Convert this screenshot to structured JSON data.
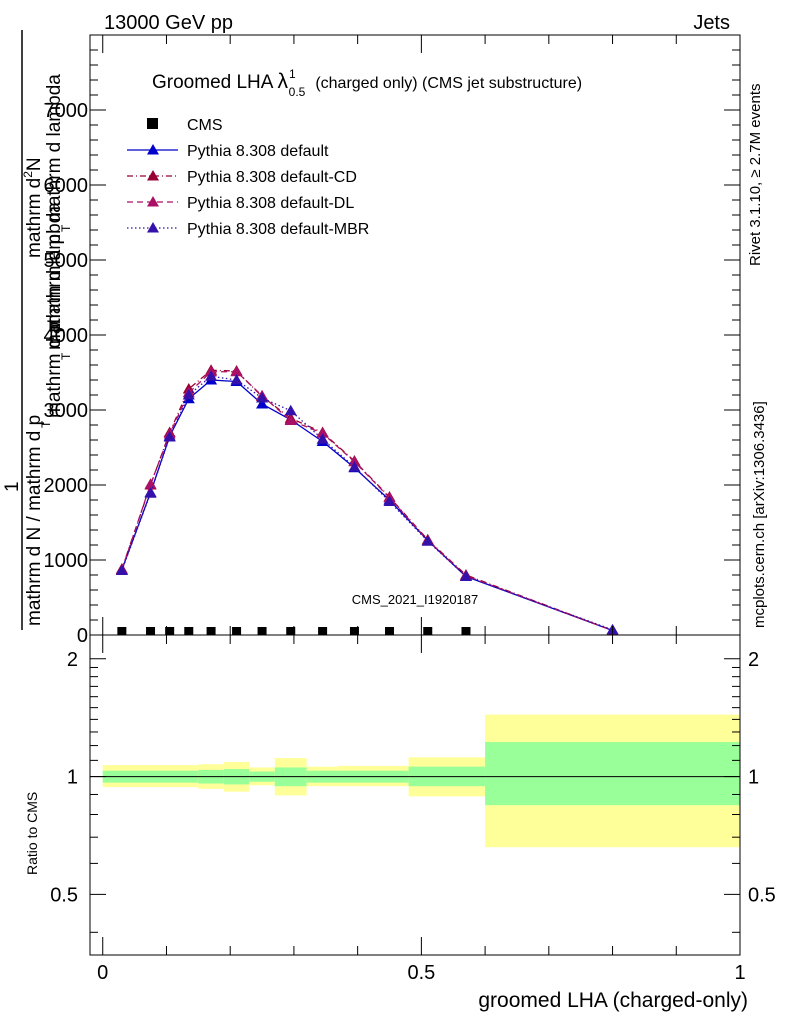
{
  "header": {
    "left": "13000 GeV pp",
    "right": "Jets"
  },
  "side_labels": {
    "rivet": "Rivet 3.1.10, ≥ 2.7M events",
    "mcplots": "mcplots.cern.ch [arXiv:1306.3436]"
  },
  "main_plot": {
    "title_prefix": "Groomed LHA",
    "title_lambda": "λ",
    "title_sup": "1",
    "title_sub": "0.5",
    "title_suffix": "(charged only) (CMS jet substructure)",
    "analysis_id": "CMS_2021_I1920187",
    "ylabel_top_a": "mathrm d",
    "ylabel_top_b": "2",
    "ylabel_top_c": "N",
    "ylabel_top_d": "mathrm d p",
    "ylabel_top_e": "T",
    "ylabel_top_f": "mathrm d lambda",
    "ylabel_bottom_a": "1",
    "ylabel_bottom_b": "mathrm d N / mathrm d p",
    "ylabel_bottom_c": "T",
    "ylabel_bottom_d": "mathrm d p",
    "ylabel_bottom_e": "T",
    "ylabel_bottom_f": "mathrm d lambda"
  },
  "ratio_plot": {
    "ylabel": "Ratio to CMS"
  },
  "chart_data": [
    {
      "type": "line",
      "xlim": [
        -0.02,
        1.0
      ],
      "ylim": [
        0,
        8000
      ],
      "xlabel": "groomed LHA (charged-only)",
      "ylabel": "mathrm d N / mathrm d p_T mathrm d lambda",
      "y_ticks": [
        {
          "value": 0,
          "label": "0"
        },
        {
          "value": 1000,
          "label": "1000"
        },
        {
          "value": 2000,
          "label": "2000"
        },
        {
          "value": 3000,
          "label": "3000"
        },
        {
          "value": 4000,
          "label": "4000"
        },
        {
          "value": 5000,
          "label": "5000"
        },
        {
          "value": 6000,
          "label": "6000"
        },
        {
          "value": 7000,
          "label": "7000"
        }
      ],
      "legend_placement": "top-left",
      "x": [
        0.03,
        0.075,
        0.105,
        0.135,
        0.17,
        0.21,
        0.25,
        0.295,
        0.345,
        0.395,
        0.45,
        0.51,
        0.57,
        0.8
      ],
      "series": [
        {
          "name": "CMS",
          "style": "marker-square",
          "color": "#000000",
          "values": [
            0,
            0,
            0,
            0,
            0,
            0,
            0,
            0,
            0,
            0,
            0,
            0,
            0,
            0
          ]
        },
        {
          "name": "Pythia 8.308 default",
          "style": "solid",
          "color": "#0000cc",
          "values": [
            870,
            1900,
            2650,
            3150,
            3400,
            3380,
            3080,
            2870,
            2580,
            2230,
            1800,
            1260,
            780,
            60
          ]
        },
        {
          "name": "Pythia 8.308 default-CD",
          "style": "dashdot",
          "color": "#990033",
          "values": [
            880,
            2000,
            2700,
            3280,
            3530,
            3520,
            3180,
            2890,
            2700,
            2320,
            1840,
            1270,
            800,
            60
          ]
        },
        {
          "name": "Pythia 8.308 default-DL",
          "style": "dashed",
          "color": "#aa1166",
          "values": [
            870,
            2010,
            2680,
            3230,
            3510,
            3510,
            3190,
            2860,
            2690,
            2310,
            1830,
            1260,
            790,
            60
          ]
        },
        {
          "name": "Pythia 8.308 default-MBR",
          "style": "dotted",
          "color": "#3311aa",
          "values": [
            860,
            1890,
            2640,
            3200,
            3450,
            3400,
            3160,
            2990,
            2610,
            2240,
            1780,
            1250,
            780,
            70
          ]
        }
      ]
    },
    {
      "type": "area",
      "title": "",
      "xlim": [
        -0.02,
        1.0
      ],
      "ylim": [
        0.35,
        2.3
      ],
      "log_y": true,
      "xlabel": "groomed LHA (charged-only)",
      "ylabel": "Ratio to CMS",
      "x_ticks": [
        {
          "value": 0,
          "label": "0"
        },
        {
          "value": 0.5,
          "label": "0.5"
        },
        {
          "value": 1,
          "label": "1"
        }
      ],
      "y_ticks": [
        {
          "value": 0.5,
          "label": "0.5"
        },
        {
          "value": 1,
          "label": "1"
        },
        {
          "value": 2,
          "label": "2"
        }
      ],
      "reference_line": 1,
      "bins": [
        {
          "lo": 0.0,
          "hi": 0.15,
          "inner": [
            0.965,
            1.035
          ],
          "outer": [
            0.94,
            1.07
          ]
        },
        {
          "lo": 0.15,
          "hi": 0.19,
          "inner": [
            0.96,
            1.04
          ],
          "outer": [
            0.93,
            1.075
          ]
        },
        {
          "lo": 0.19,
          "hi": 0.23,
          "inner": [
            0.955,
            1.045
          ],
          "outer": [
            0.915,
            1.09
          ]
        },
        {
          "lo": 0.23,
          "hi": 0.27,
          "inner": [
            0.97,
            1.03
          ],
          "outer": [
            0.95,
            1.055
          ]
        },
        {
          "lo": 0.27,
          "hi": 0.32,
          "inner": [
            0.945,
            1.055
          ],
          "outer": [
            0.895,
            1.115
          ]
        },
        {
          "lo": 0.32,
          "hi": 0.37,
          "inner": [
            0.965,
            1.035
          ],
          "outer": [
            0.945,
            1.06
          ]
        },
        {
          "lo": 0.37,
          "hi": 0.48,
          "inner": [
            0.965,
            1.035
          ],
          "outer": [
            0.945,
            1.065
          ]
        },
        {
          "lo": 0.48,
          "hi": 0.6,
          "inner": [
            0.945,
            1.06
          ],
          "outer": [
            0.89,
            1.12
          ]
        },
        {
          "lo": 0.6,
          "hi": 1.0,
          "inner": [
            0.845,
            1.225
          ],
          "outer": [
            0.66,
            1.44
          ]
        }
      ]
    }
  ],
  "colors": {
    "inner_band": "#99ff99",
    "outer_band": "#ffff99",
    "side_text": "#888888",
    "analysis_text": "#999999"
  }
}
